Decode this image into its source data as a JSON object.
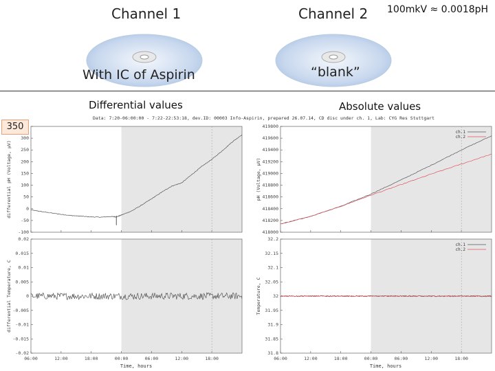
{
  "slide": {
    "channel1_title": "Channel 1",
    "channel2_title": "Channel 2",
    "conversion_note": "100mkV ≈ 0.0018pH",
    "channel1_subtitle": "With IC of Aspirin",
    "channel2_subtitle": "“blank”",
    "left_section_label": "Differential values",
    "right_section_label": "Absolute values",
    "value_badge": "350"
  },
  "plot_header": "Data: 7:20-06:00:00 - 7:22-22:53:18, dev.ID: 00003 Info-Aspirin, prepared 26.07.14, CD disc under ch. 1, Lab: CYG Res Stuttgart",
  "colors": {
    "shaded": "#e6e6e6",
    "ch1": "#555555",
    "ch2": "#e0505a",
    "badge_fill": "#fde9d9",
    "badge_border": "#e6a07e"
  },
  "chart_data": [
    {
      "id": "diff-ph",
      "type": "line",
      "ylabel": "differential pH (Voltage, µV)",
      "ylim": [
        -100,
        350
      ],
      "yticks": [
        "-100",
        "-50",
        "0",
        "50",
        "100",
        "150",
        "200",
        "250",
        "300",
        "350"
      ],
      "x": [
        0,
        2,
        4,
        6,
        8,
        10,
        12,
        14,
        16,
        17,
        18,
        20,
        22,
        24,
        26,
        28,
        30,
        32,
        34,
        36,
        38,
        40,
        42
      ],
      "series": [
        {
          "name": "diff",
          "values": [
            -5,
            -12,
            -18,
            -24,
            -29,
            -32,
            -35,
            -36,
            -33,
            -35,
            -27,
            -10,
            15,
            42,
            70,
            96,
            110,
            145,
            180,
            210,
            245,
            283,
            315
          ]
        }
      ],
      "spike_x": 17,
      "spike_value": -70,
      "shaded_from_x": 18
    },
    {
      "id": "abs-ph",
      "type": "line",
      "ylabel": "pH (Voltage, µV)",
      "ylim": [
        418000,
        419800
      ],
      "yticks": [
        "418000",
        "418200",
        "418400",
        "418600",
        "418800",
        "419000",
        "419200",
        "419400",
        "419600",
        "419800"
      ],
      "x": [
        0,
        6,
        12,
        18,
        24,
        30,
        36,
        42
      ],
      "series": [
        {
          "name": "ch.1",
          "values": [
            418140,
            418270,
            418440,
            418650,
            418890,
            419140,
            419400,
            419640
          ]
        },
        {
          "name": "ch.2",
          "values": [
            418140,
            418270,
            418440,
            418630,
            418810,
            418990,
            419160,
            419330
          ]
        }
      ],
      "legend": [
        "ch.1",
        "ch.2"
      ],
      "shaded_from_x": 18
    },
    {
      "id": "diff-temp",
      "type": "line",
      "ylabel": "differential Temperature, C",
      "ylim": [
        -0.02,
        0.02
      ],
      "yticks": [
        "-0.02",
        "-0.015",
        "-0.01",
        "-0.005",
        "0",
        "0.005",
        "0.01",
        "0.015",
        "0.02"
      ],
      "series": [
        {
          "name": "diff",
          "mean": 0,
          "noise": 0.0012
        }
      ],
      "shaded_from_x": 18
    },
    {
      "id": "abs-temp",
      "type": "line",
      "ylabel": "Temperature, C",
      "ylim": [
        31.8,
        32.2
      ],
      "yticks": [
        "31.8",
        "31.85",
        "31.9",
        "31.95",
        "32",
        "32.05",
        "32.1",
        "32.15",
        "32.2"
      ],
      "series": [
        {
          "name": "ch.1",
          "mean": 32.0,
          "noise": 0.002
        },
        {
          "name": "ch.2",
          "mean": 32.0,
          "noise": 0.002
        }
      ],
      "legend": [
        "ch.1",
        "ch.2"
      ],
      "shaded_from_x": 18
    }
  ],
  "x_axis": {
    "label": "Time, hours",
    "range": [
      0,
      42
    ],
    "tick_positions": [
      0,
      6,
      12,
      18,
      24,
      30,
      36
    ],
    "tick_labels": [
      "06:00",
      "12:00",
      "18:00",
      "00:00",
      "06:00",
      "12:00",
      "18:00"
    ]
  }
}
